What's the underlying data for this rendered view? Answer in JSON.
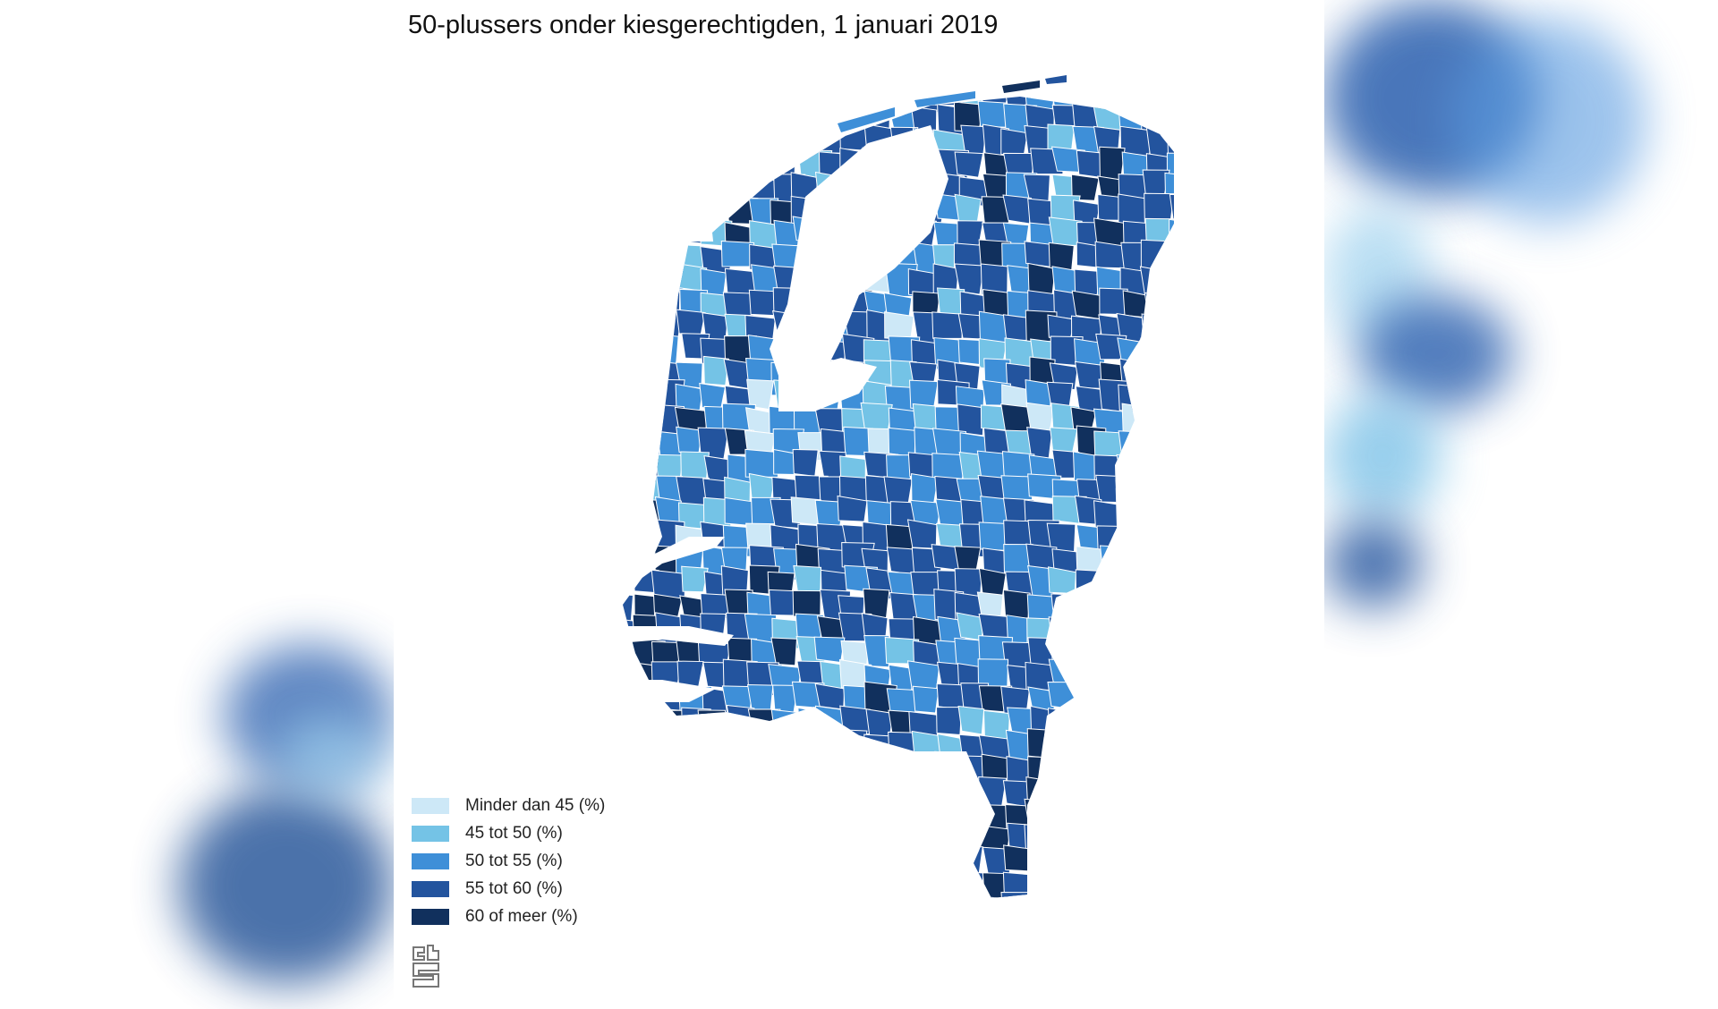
{
  "map": {
    "title": "50-plussers onder kiesgerechtigden, 1 januari 2019",
    "colors": {
      "lt45": "#cde8f7",
      "c45_50": "#74c3e6",
      "c50_55": "#3e8fd8",
      "c55_60": "#23549e",
      "c60plus": "#11305d",
      "water": "#ffffff",
      "border": "#ffffff"
    },
    "legend": [
      {
        "label": "Minder dan 45 (%)",
        "color": "#cde8f7"
      },
      {
        "label": "45 tot 50 (%)",
        "color": "#74c3e6"
      },
      {
        "label": "50 tot 55 (%)",
        "color": "#3e8fd8"
      },
      {
        "label": "55 tot 60 (%)",
        "color": "#23549e"
      },
      {
        "label": "60 of meer (%)",
        "color": "#11305d"
      }
    ],
    "logo": {
      "text": "cbs",
      "icon": "cbs-logo-icon"
    }
  }
}
